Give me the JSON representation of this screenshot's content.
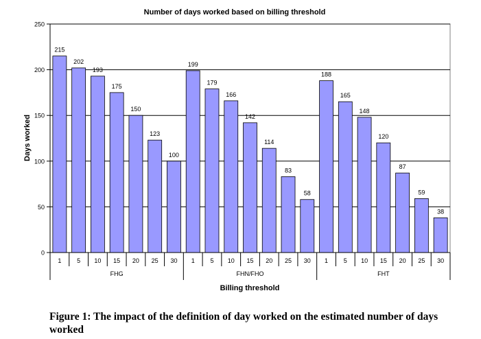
{
  "chart_data": {
    "type": "bar",
    "title": "Number of days worked based on billing threshold",
    "xlabel": "Billing threshold",
    "ylabel": "Days worked",
    "ylim": [
      0,
      250
    ],
    "yticks": [
      "0",
      "50",
      "100",
      "150",
      "200",
      "250"
    ],
    "grid": true,
    "bar_color": "#9999ff",
    "groups": [
      {
        "name": "FHG",
        "categories": [
          "1",
          "5",
          "10",
          "15",
          "20",
          "25",
          "30"
        ],
        "values": [
          215,
          202,
          193,
          175,
          150,
          123,
          100
        ]
      },
      {
        "name": "FHN/FHO",
        "categories": [
          "1",
          "5",
          "10",
          "15",
          "20",
          "25",
          "30"
        ],
        "values": [
          199,
          179,
          166,
          142,
          114,
          83,
          58
        ]
      },
      {
        "name": "FHT",
        "categories": [
          "1",
          "5",
          "10",
          "15",
          "20",
          "25",
          "30"
        ],
        "values": [
          188,
          165,
          148,
          120,
          87,
          59,
          38
        ]
      }
    ]
  },
  "caption": "Figure 1: The impact of the definition of day worked on the estimated number of days worked"
}
